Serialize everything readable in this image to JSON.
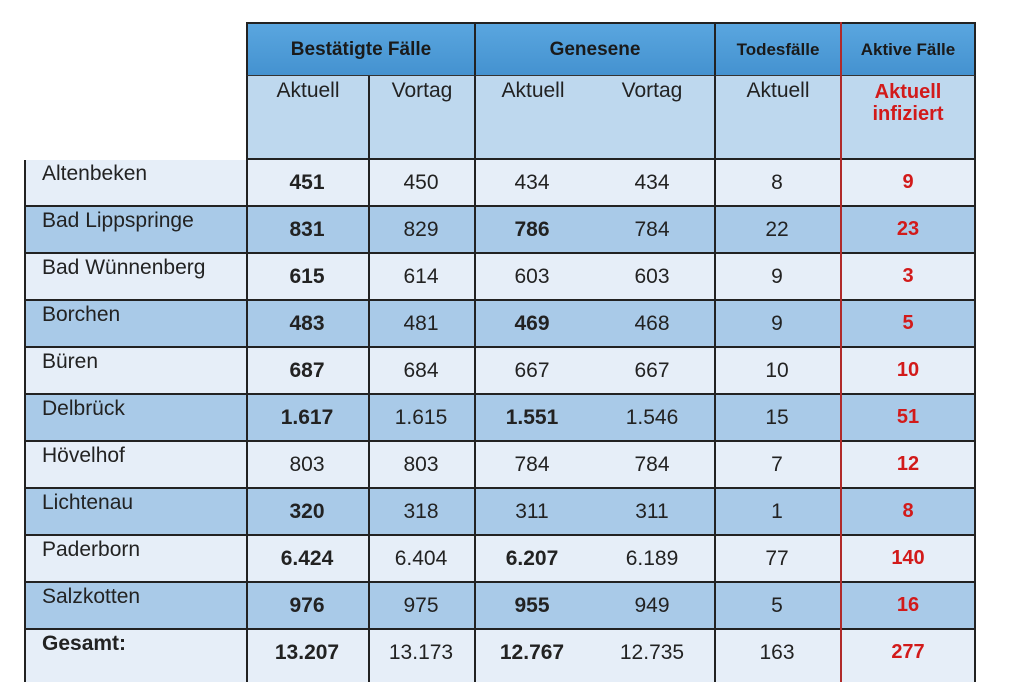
{
  "header": {
    "groups": [
      "Bestätigte Fälle",
      "Genesene",
      "Todesfälle",
      "Aktive Fälle"
    ],
    "sub": [
      "Aktuell",
      "Vortag",
      "Aktuell",
      "Vortag",
      "Aktuell",
      "Aktuell infiziert"
    ],
    "sub_red_line1": "Aktuell",
    "sub_red_line2": "infiziert"
  },
  "rows": [
    {
      "name": "Altenbeken",
      "bestaetigt_aktuell": "451",
      "bestaetigt_vortag": "450",
      "genesen_aktuell": "434",
      "genesen_vortag": "434",
      "tod": "8",
      "aktiv": "9"
    },
    {
      "name": "Bad Lippspringe",
      "bestaetigt_aktuell": "831",
      "bestaetigt_vortag": "829",
      "genesen_aktuell": "786",
      "genesen_vortag": "784",
      "tod": "22",
      "aktiv": "23"
    },
    {
      "name": "Bad Wünnenberg",
      "bestaetigt_aktuell": "615",
      "bestaetigt_vortag": "614",
      "genesen_aktuell": "603",
      "genesen_vortag": "603",
      "tod": "9",
      "aktiv": "3"
    },
    {
      "name": "Borchen",
      "bestaetigt_aktuell": "483",
      "bestaetigt_vortag": "481",
      "genesen_aktuell": "469",
      "genesen_vortag": "468",
      "tod": "9",
      "aktiv": "5"
    },
    {
      "name": "Büren",
      "bestaetigt_aktuell": "687",
      "bestaetigt_vortag": "684",
      "genesen_aktuell": "667",
      "genesen_vortag": "667",
      "tod": "10",
      "aktiv": "10"
    },
    {
      "name": "Delbrück",
      "bestaetigt_aktuell": "1.617",
      "bestaetigt_vortag": "1.615",
      "genesen_aktuell": "1.551",
      "genesen_vortag": "1.546",
      "tod": "15",
      "aktiv": "51"
    },
    {
      "name": "Hövelhof",
      "bestaetigt_aktuell": "803",
      "bestaetigt_vortag": "803",
      "genesen_aktuell": "784",
      "genesen_vortag": "784",
      "tod": "7",
      "aktiv": "12"
    },
    {
      "name": "Lichtenau",
      "bestaetigt_aktuell": "320",
      "bestaetigt_vortag": "318",
      "genesen_aktuell": "311",
      "genesen_vortag": "311",
      "tod": "1",
      "aktiv": "8"
    },
    {
      "name": "Paderborn",
      "bestaetigt_aktuell": "6.424",
      "bestaetigt_vortag": "6.404",
      "genesen_aktuell": "6.207",
      "genesen_vortag": "6.189",
      "tod": "77",
      "aktiv": "140"
    },
    {
      "name": "Salzkotten",
      "bestaetigt_aktuell": "976",
      "bestaetigt_vortag": "975",
      "genesen_aktuell": "955",
      "genesen_vortag": "949",
      "tod": "5",
      "aktiv": "16"
    },
    {
      "name": "Gesamt:",
      "bestaetigt_aktuell": "13.207",
      "bestaetigt_vortag": "13.173",
      "genesen_aktuell": "12.767",
      "genesen_vortag": "12.735",
      "tod": "163",
      "aktiv": "277"
    }
  ]
}
